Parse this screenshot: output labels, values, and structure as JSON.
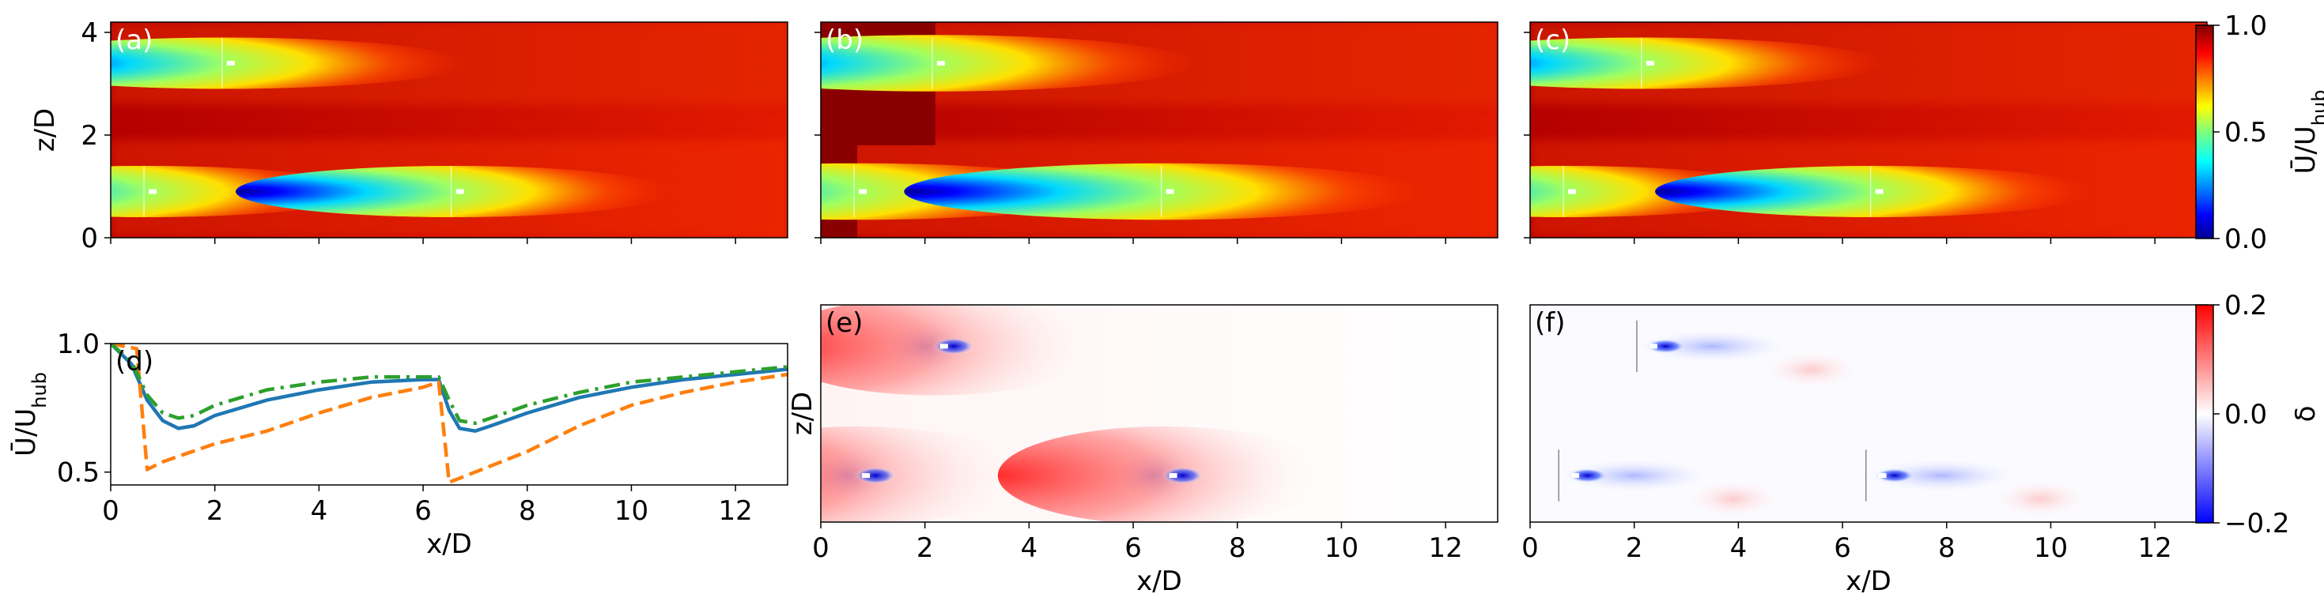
{
  "figure": {
    "panels": [
      {
        "id": "a",
        "label": "(a)",
        "type": "field",
        "field": "U",
        "ylabel": "z/D",
        "show_x_ticks": false,
        "show_y_ticks": true,
        "turbines": [
          {
            "x": 2.2,
            "z": 3.4
          },
          {
            "x": 0.7,
            "z": 0.9
          },
          {
            "x": 6.6,
            "z": 0.9
          }
        ]
      },
      {
        "id": "b",
        "label": "(b)",
        "type": "field",
        "field": "U",
        "ylabel": "",
        "show_x_ticks": false,
        "show_y_ticks": false,
        "turbines": [
          {
            "x": 2.2,
            "z": 3.4
          },
          {
            "x": 0.7,
            "z": 0.9
          },
          {
            "x": 6.6,
            "z": 0.9
          }
        ]
      },
      {
        "id": "c",
        "label": "(c)",
        "type": "field",
        "field": "U",
        "ylabel": "",
        "show_x_ticks": false,
        "show_y_ticks": false,
        "turbines": [
          {
            "x": 2.2,
            "z": 3.4
          },
          {
            "x": 0.7,
            "z": 0.9
          },
          {
            "x": 6.6,
            "z": 0.9
          }
        ]
      },
      {
        "id": "e",
        "label": "(e)",
        "type": "field",
        "field": "delta",
        "ylabel": "z/D",
        "xlabel": "x/D",
        "show_x_ticks": true,
        "show_y_ticks": false,
        "turbines": [
          {
            "x": 2.2,
            "z": 3.4
          },
          {
            "x": 0.7,
            "z": 0.9
          },
          {
            "x": 6.6,
            "z": 0.9
          }
        ]
      },
      {
        "id": "f",
        "label": "(f)",
        "type": "field",
        "field": "delta",
        "ylabel": "",
        "xlabel": "x/D",
        "show_x_ticks": true,
        "show_y_ticks": false,
        "turbines": [
          {
            "x": 2.2,
            "z": 3.4
          },
          {
            "x": 0.7,
            "z": 0.9
          },
          {
            "x": 6.6,
            "z": 0.9
          }
        ]
      }
    ],
    "colorbars": [
      {
        "id": "U",
        "label": "Ū/U_hub",
        "ticks": [
          "1.0",
          "0.5",
          "0.0"
        ],
        "cmap": "jet"
      },
      {
        "id": "delta",
        "label": "δ",
        "ticks": [
          "0.2",
          "0.0",
          "−0.2"
        ],
        "cmap": "bwr"
      }
    ],
    "xticks": [
      "0",
      "2",
      "4",
      "6",
      "8",
      "10",
      "12"
    ],
    "zticks": [
      "4",
      "2",
      "0"
    ]
  },
  "chart_data": [
    {
      "type": "heatmap",
      "panel": "(a)",
      "ylabel": "z/D",
      "xlim": [
        0,
        13
      ],
      "ylim": [
        0,
        4.2
      ],
      "clim": [
        0.0,
        1.0
      ]
    },
    {
      "type": "heatmap",
      "panel": "(b)",
      "xlim": [
        0,
        13
      ],
      "ylim": [
        0,
        4.2
      ],
      "clim": [
        0.0,
        1.0
      ]
    },
    {
      "type": "heatmap",
      "panel": "(c)",
      "xlim": [
        0,
        13
      ],
      "ylim": [
        0,
        4.2
      ],
      "clim": [
        0.0,
        1.0
      ]
    },
    {
      "type": "line",
      "panel": "(d)",
      "xlabel": "x/D",
      "ylabel": "Ū/U_hub",
      "xlim": [
        0,
        13
      ],
      "ylim": [
        0.45,
        1.0
      ],
      "yticks": [
        "1.0",
        "0.5"
      ],
      "series": [
        {
          "color": "#1f77b4",
          "style": "solid",
          "x": [
            0,
            0.4,
            0.7,
            1.0,
            1.3,
            1.6,
            2,
            3,
            4,
            5,
            6,
            6.3,
            6.5,
            6.7,
            7,
            7.3,
            8,
            9,
            10,
            11,
            12,
            13
          ],
          "y": [
            1.0,
            0.92,
            0.78,
            0.7,
            0.67,
            0.68,
            0.72,
            0.78,
            0.82,
            0.85,
            0.86,
            0.86,
            0.74,
            0.67,
            0.66,
            0.68,
            0.73,
            0.79,
            0.83,
            0.86,
            0.88,
            0.9
          ]
        },
        {
          "color": "#ff7f0e",
          "style": "dashed",
          "x": [
            0,
            0.5,
            0.7,
            1,
            2,
            3,
            4,
            5,
            6,
            6.3,
            6.5,
            7,
            8,
            9,
            10,
            11,
            12,
            13
          ],
          "y": [
            1.0,
            0.98,
            0.51,
            0.54,
            0.61,
            0.66,
            0.73,
            0.79,
            0.83,
            0.85,
            0.46,
            0.5,
            0.58,
            0.68,
            0.76,
            0.81,
            0.85,
            0.88
          ]
        },
        {
          "color": "#2ca02c",
          "style": "dashdot",
          "x": [
            0,
            0.4,
            0.7,
            1.0,
            1.3,
            1.6,
            2,
            3,
            4,
            5,
            6,
            6.3,
            6.5,
            6.7,
            7,
            7.3,
            8,
            9,
            10,
            11,
            12,
            13
          ],
          "y": [
            1.0,
            0.93,
            0.8,
            0.73,
            0.71,
            0.72,
            0.76,
            0.82,
            0.85,
            0.87,
            0.87,
            0.87,
            0.78,
            0.7,
            0.69,
            0.71,
            0.76,
            0.81,
            0.85,
            0.87,
            0.89,
            0.91
          ]
        }
      ]
    },
    {
      "type": "heatmap",
      "panel": "(e)",
      "xlabel": "x/D",
      "ylabel": "z/D",
      "xlim": [
        0,
        13
      ],
      "ylim": [
        0,
        4.2
      ],
      "clim": [
        -0.2,
        0.2
      ]
    },
    {
      "type": "heatmap",
      "panel": "(f)",
      "xlabel": "x/D",
      "xlim": [
        0,
        13
      ],
      "ylim": [
        0,
        4.2
      ],
      "clim": [
        -0.2,
        0.2
      ]
    }
  ]
}
